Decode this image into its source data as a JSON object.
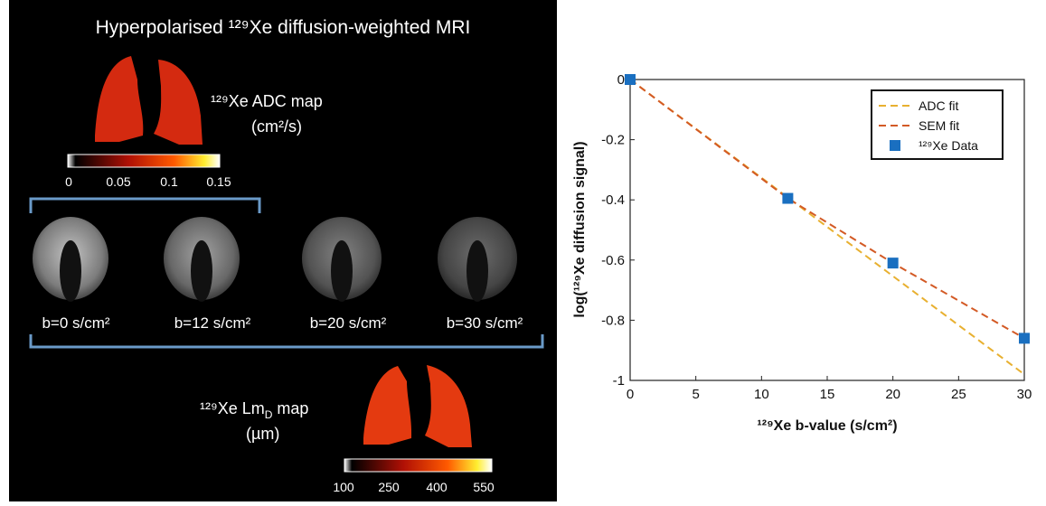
{
  "left": {
    "title": "Hyperpolarised ¹²⁹Xe diffusion-weighted MRI",
    "adc_label_line1": "¹²⁹Xe ADC map",
    "adc_label_line2": "(cm²/s)",
    "adc_colorbar_ticks": [
      "0",
      "0.05",
      "0.1",
      "0.15"
    ],
    "b_labels": [
      "b=0 s/cm²",
      "b=12 s/cm²",
      "b=20 s/cm²",
      "b=30 s/cm²"
    ],
    "lmd_label_prefix": "¹²⁹Xe Lm",
    "lmd_label_sub": "D",
    "lmd_label_suffix": " map",
    "lmd_label_line2": "(µm)",
    "lmd_colorbar_ticks": [
      "100",
      "250",
      "400",
      "550"
    ],
    "colors": {
      "adc": "#d42a10",
      "lmd": "#e43a10"
    }
  },
  "chart_data": {
    "type": "scatter",
    "title": "",
    "xlabel": "¹²⁹Xe b-value (s/cm²)",
    "ylabel": "log(¹²⁹Xe diffusion signal)",
    "xlim": [
      0,
      30
    ],
    "ylim": [
      -1,
      0
    ],
    "xticks": [
      "0",
      "5",
      "10",
      "15",
      "20",
      "25",
      "30"
    ],
    "yticks": [
      "0",
      "-0.2",
      "-0.4",
      "-0.6",
      "-0.8",
      "-1"
    ],
    "grid": false,
    "legend_position": "top-right",
    "series": [
      {
        "name": "ADC fit",
        "kind": "line",
        "style": "dashed",
        "color": "#e8b030",
        "x": [
          0,
          30
        ],
        "y": [
          0,
          -0.98
        ]
      },
      {
        "name": "SEM fit",
        "kind": "line",
        "style": "dashed",
        "color": "#d35a25",
        "x": [
          0,
          12,
          20,
          30
        ],
        "y": [
          0,
          -0.395,
          -0.61,
          -0.86
        ]
      },
      {
        "name": "¹²⁹Xe Data",
        "kind": "marker",
        "style": "square",
        "color": "#1a6fc0",
        "x": [
          0,
          12,
          20,
          30
        ],
        "y": [
          0,
          -0.395,
          -0.61,
          -0.86
        ]
      }
    ]
  }
}
